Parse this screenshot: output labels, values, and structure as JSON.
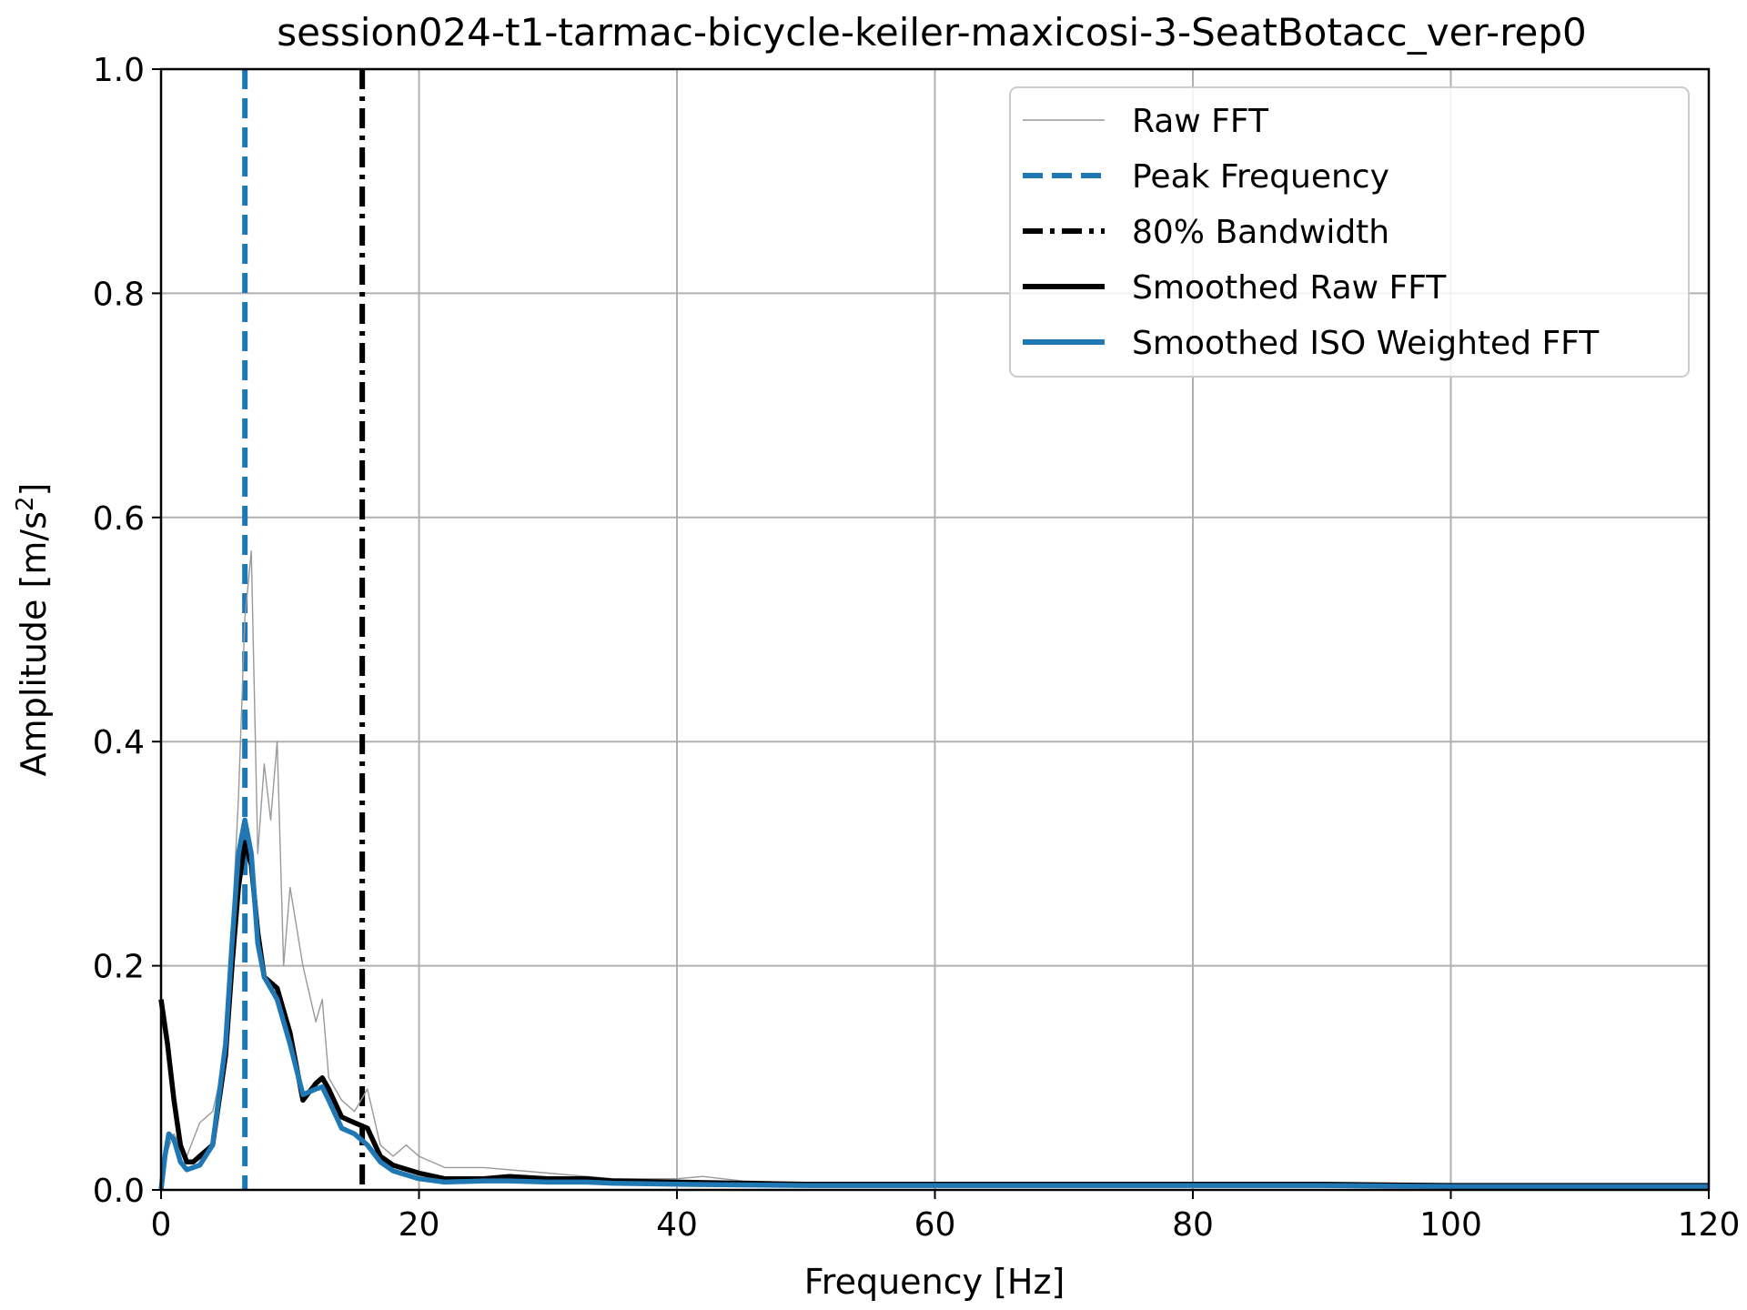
{
  "chart_data": {
    "type": "line",
    "title": "session024-t1-tarmac-bicycle-keiler-maxicosi-3-SeatBotacc_ver-rep0",
    "xlabel": "Frequency [Hz]",
    "ylabel": "Amplitude [m/s",
    "ylabel_sup": "2",
    "ylabel_end": "]",
    "xlim": [
      0,
      120
    ],
    "ylim": [
      0,
      1.0
    ],
    "xticks": [
      0,
      20,
      40,
      60,
      80,
      100,
      120
    ],
    "yticks": [
      0.0,
      0.2,
      0.4,
      0.6,
      0.8,
      1.0
    ],
    "xtick_labels": [
      "0",
      "20",
      "40",
      "60",
      "80",
      "100",
      "120"
    ],
    "ytick_labels": [
      "0.0",
      "0.2",
      "0.4",
      "0.6",
      "0.8",
      "1.0"
    ],
    "grid": true,
    "legend_position": "top-right",
    "peak_frequency": 6.5,
    "bandwidth_80": 15.6,
    "series": [
      {
        "name": "Raw FFT",
        "color": "#999999",
        "style": "thin",
        "x": [
          0,
          1,
          2,
          3,
          4,
          5,
          6,
          6.5,
          7,
          7.5,
          8,
          8.5,
          9,
          9.5,
          10,
          11,
          12,
          12.5,
          13,
          14,
          15,
          16,
          17,
          18,
          19,
          20,
          22,
          25,
          30,
          35,
          40,
          42,
          45,
          50,
          60,
          70,
          80,
          90,
          100,
          110,
          120
        ],
        "values": [
          0.02,
          0.05,
          0.03,
          0.06,
          0.07,
          0.12,
          0.35,
          0.51,
          0.57,
          0.3,
          0.38,
          0.33,
          0.4,
          0.2,
          0.27,
          0.2,
          0.15,
          0.17,
          0.1,
          0.08,
          0.07,
          0.09,
          0.04,
          0.03,
          0.04,
          0.03,
          0.02,
          0.02,
          0.015,
          0.01,
          0.01,
          0.012,
          0.008,
          0.006,
          0.005,
          0.004,
          0.004,
          0.004,
          0.003,
          0.003,
          0.003
        ]
      },
      {
        "name": "Smoothed Raw FFT",
        "color": "#000000",
        "style": "thick",
        "x": [
          0,
          0.5,
          1,
          1.5,
          2,
          2.5,
          3,
          4,
          5,
          5.5,
          6,
          6.5,
          7,
          7.5,
          8,
          8.5,
          9,
          10,
          11,
          12,
          12.5,
          13,
          14,
          15,
          16,
          17,
          18,
          20,
          22,
          25,
          27,
          30,
          33,
          35,
          40,
          50,
          60,
          70,
          80,
          90,
          100,
          110,
          120
        ],
        "values": [
          0.17,
          0.13,
          0.08,
          0.04,
          0.025,
          0.025,
          0.03,
          0.04,
          0.12,
          0.2,
          0.27,
          0.31,
          0.29,
          0.23,
          0.19,
          0.185,
          0.18,
          0.14,
          0.08,
          0.095,
          0.1,
          0.09,
          0.065,
          0.06,
          0.055,
          0.03,
          0.022,
          0.015,
          0.01,
          0.01,
          0.012,
          0.01,
          0.01,
          0.008,
          0.007,
          0.005,
          0.005,
          0.005,
          0.005,
          0.005,
          0.004,
          0.004,
          0.004
        ]
      },
      {
        "name": "Smoothed ISO Weighted FFT",
        "color": "#1f77b4",
        "style": "thick",
        "x": [
          0,
          0.3,
          0.6,
          1,
          1.5,
          2,
          3,
          4,
          5,
          5.5,
          6,
          6.5,
          7,
          7.5,
          8,
          8.5,
          9,
          10,
          11,
          12,
          12.5,
          13,
          14,
          15,
          16,
          17,
          18,
          20,
          22,
          25,
          27,
          30,
          33,
          35,
          40,
          50,
          60,
          70,
          80,
          90,
          100,
          110,
          120
        ],
        "values": [
          0.0,
          0.03,
          0.05,
          0.045,
          0.025,
          0.018,
          0.022,
          0.04,
          0.13,
          0.22,
          0.3,
          0.33,
          0.3,
          0.22,
          0.19,
          0.18,
          0.17,
          0.13,
          0.085,
          0.09,
          0.092,
          0.08,
          0.055,
          0.05,
          0.04,
          0.025,
          0.017,
          0.01,
          0.007,
          0.008,
          0.008,
          0.007,
          0.007,
          0.006,
          0.005,
          0.004,
          0.004,
          0.004,
          0.004,
          0.004,
          0.003,
          0.003,
          0.003
        ]
      }
    ],
    "reference_lines": [
      {
        "name": "Peak Frequency",
        "color": "#1f77b4",
        "style": "dashed"
      },
      {
        "name": "80% Bandwidth",
        "color": "#000000",
        "style": "dashdot"
      }
    ],
    "legend": [
      {
        "label": "Raw FFT",
        "color": "#999999",
        "style": "thin"
      },
      {
        "label": "Peak Frequency",
        "color": "#1f77b4",
        "style": "dashed"
      },
      {
        "label": "80% Bandwidth",
        "color": "#000000",
        "style": "dashdot"
      },
      {
        "label": "Smoothed Raw FFT",
        "color": "#000000",
        "style": "thick"
      },
      {
        "label": "Smoothed ISO Weighted FFT",
        "color": "#1f77b4",
        "style": "thick"
      }
    ]
  }
}
